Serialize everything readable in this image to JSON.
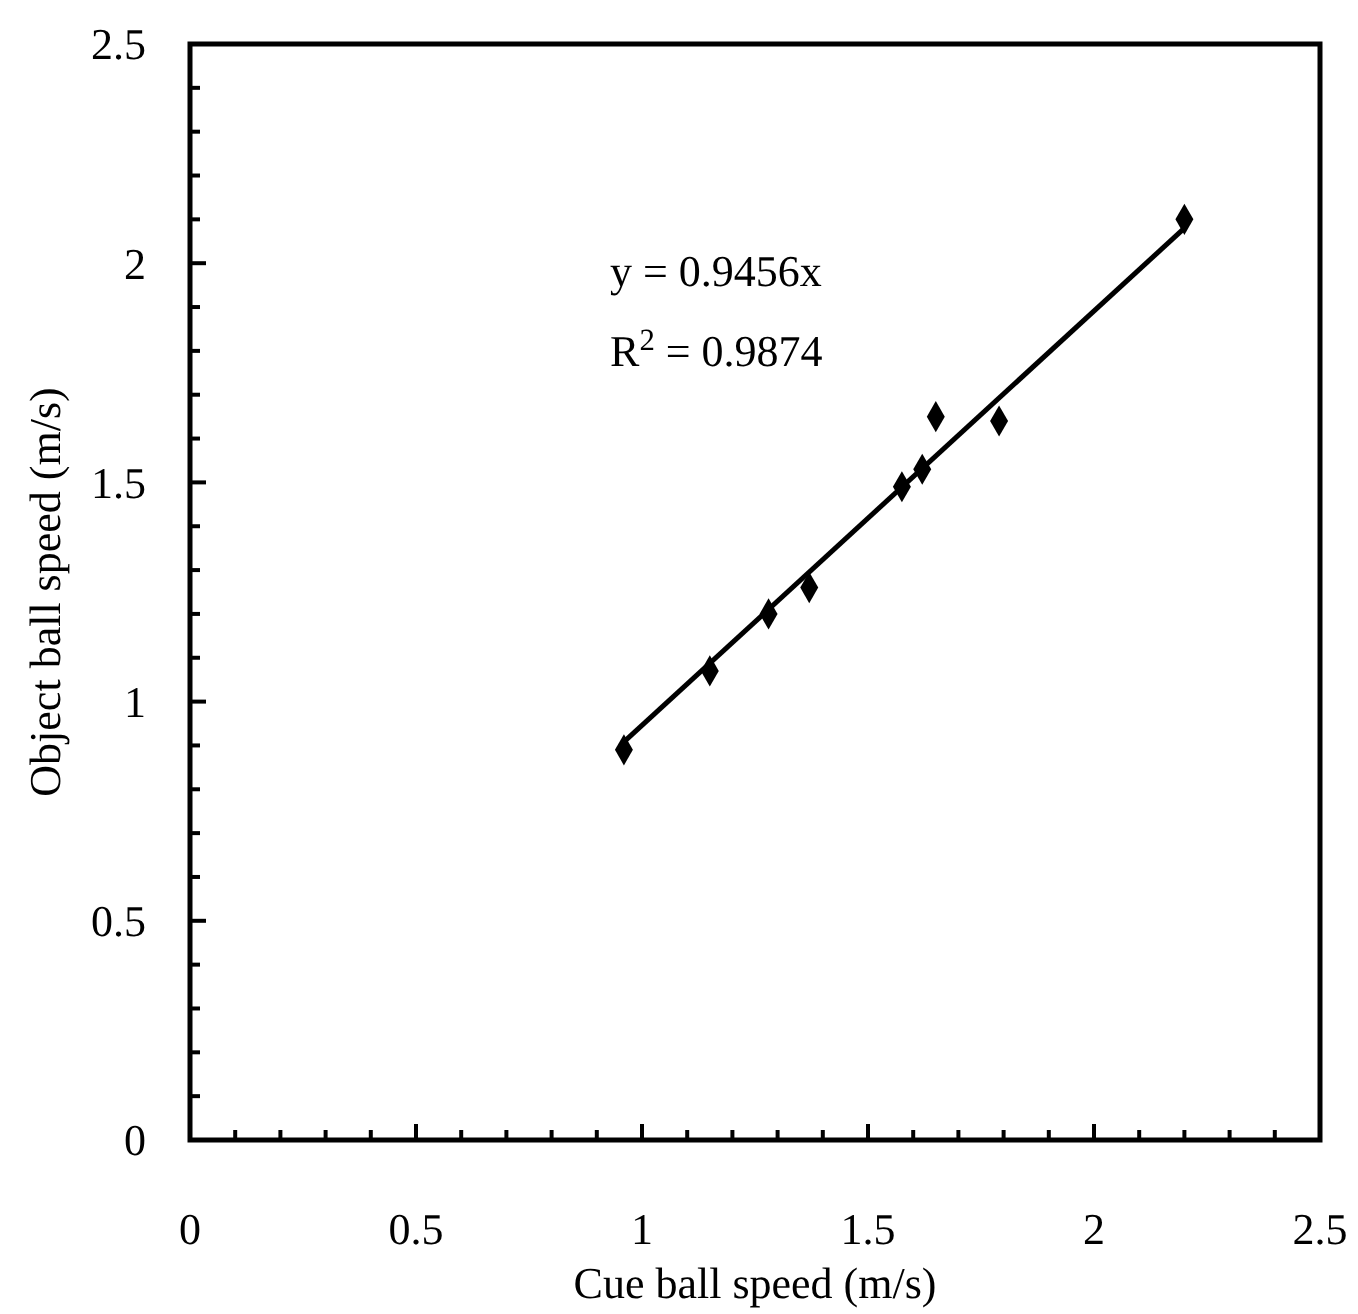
{
  "chart_data": {
    "type": "scatter",
    "xlabel": "Cue ball speed (m/s)",
    "ylabel": "Object ball speed (m/s)",
    "xlim": [
      0,
      2.5
    ],
    "ylim": [
      0,
      2.5
    ],
    "xticks": [
      0,
      {
        "value": 0.1,
        "label": null
      },
      {
        "value": 0.2,
        "label": null
      },
      {
        "value": 0.3,
        "label": null
      },
      {
        "value": 0.4,
        "label": null
      },
      0.5,
      {
        "value": 0.6,
        "label": null
      },
      {
        "value": 0.7,
        "label": null
      },
      {
        "value": 0.8,
        "label": null
      },
      {
        "value": 0.9,
        "label": null
      },
      1,
      {
        "value": 1.1,
        "label": null
      },
      {
        "value": 1.2,
        "label": null
      },
      {
        "value": 1.3,
        "label": null
      },
      {
        "value": 1.4,
        "label": null
      },
      1.5,
      {
        "value": 1.6,
        "label": null
      },
      {
        "value": 1.7,
        "label": null
      },
      {
        "value": 1.8,
        "label": null
      },
      {
        "value": 1.9,
        "label": null
      },
      2,
      {
        "value": 2.1,
        "label": null
      },
      {
        "value": 2.2,
        "label": null
      },
      {
        "value": 2.3,
        "label": null
      },
      {
        "value": 2.4,
        "label": null
      },
      2.5
    ],
    "yticks": [
      0,
      {
        "value": 0.1,
        "label": null
      },
      {
        "value": 0.2,
        "label": null
      },
      {
        "value": 0.3,
        "label": null
      },
      {
        "value": 0.4,
        "label": null
      },
      0.5,
      {
        "value": 0.6,
        "label": null
      },
      {
        "value": 0.7,
        "label": null
      },
      {
        "value": 0.8,
        "label": null
      },
      {
        "value": 0.9,
        "label": null
      },
      1,
      {
        "value": 1.1,
        "label": null
      },
      {
        "value": 1.2,
        "label": null
      },
      {
        "value": 1.3,
        "label": null
      },
      {
        "value": 1.4,
        "label": null
      },
      1.5,
      {
        "value": 1.6,
        "label": null
      },
      {
        "value": 1.7,
        "label": null
      },
      {
        "value": 1.8,
        "label": null
      },
      {
        "value": 1.9,
        "label": null
      },
      2,
      {
        "value": 2.1,
        "label": null
      },
      {
        "value": 2.2,
        "label": null
      },
      {
        "value": 2.3,
        "label": null
      },
      {
        "value": 2.4,
        "label": null
      },
      2.5
    ],
    "grid": false,
    "series": [
      {
        "marker": "diamond",
        "color": "#000000",
        "x": [
          0.96,
          1.15,
          1.28,
          1.37,
          1.575,
          1.62,
          1.65,
          1.79,
          2.2
        ],
        "values": [
          0.89,
          1.07,
          1.2,
          1.26,
          1.49,
          1.53,
          1.65,
          1.64,
          2.1
        ]
      },
      {
        "type": "line",
        "color": "#000000",
        "x": [
          0.96,
          2.2
        ],
        "values": [
          0.908,
          2.08
        ]
      }
    ],
    "annotations": [
      "y = 0.9456x",
      "R$^{2}$ = 0.9874"
    ]
  }
}
